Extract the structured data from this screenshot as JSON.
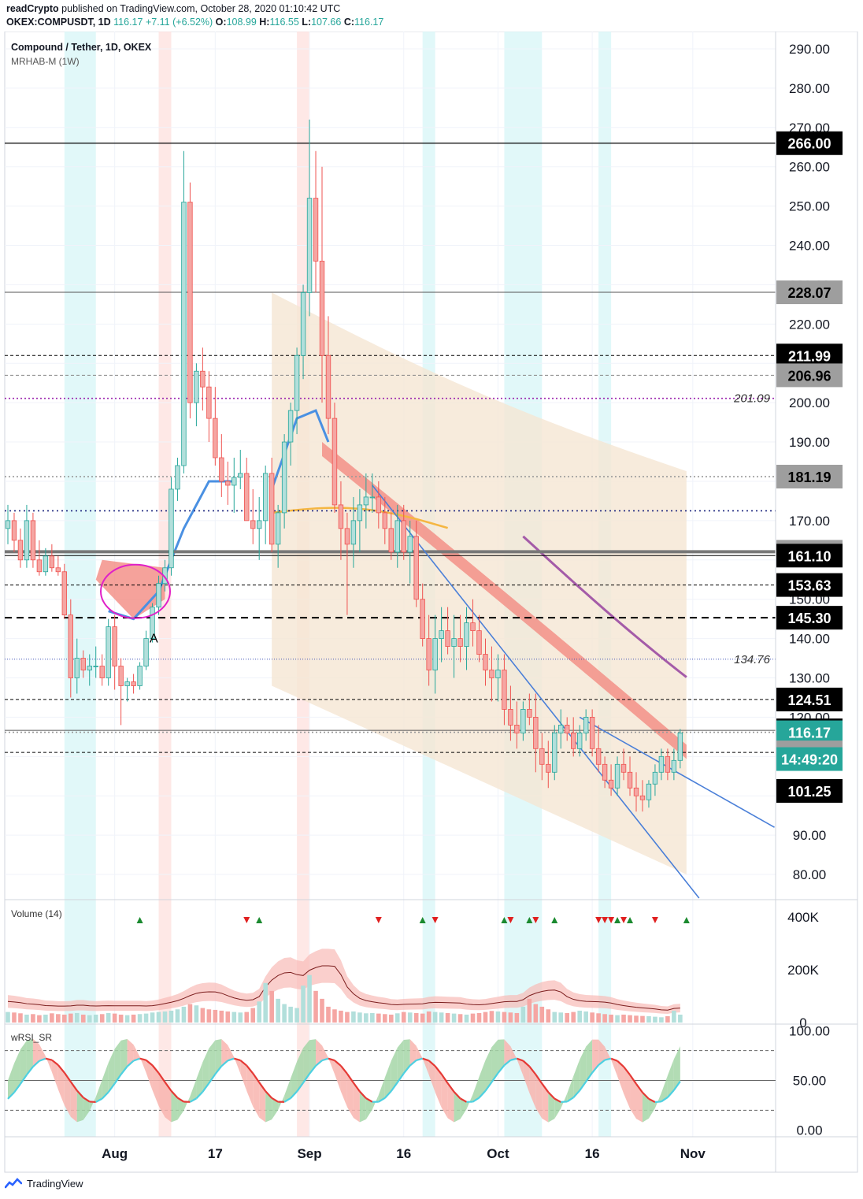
{
  "header": {
    "publisher": "readCrypto",
    "published_text": "published on TradingView.com, October 28, 2020 01:10:42 UTC",
    "symbol_line": "OKEX:COMPUSDT, 1D",
    "last": "116.17",
    "change": "+7.11 (+6.52%)",
    "o_label": "O:",
    "o": "108.99",
    "h_label": "H:",
    "h": "116.55",
    "l_label": "L:",
    "l": "107.66",
    "c_label": "C:",
    "c": "116.17"
  },
  "legend": {
    "title": "Compound / Tether, 1D, OKEX",
    "indicator": "MRHAB-M (1W)"
  },
  "footer": {
    "brand": "TradingView"
  },
  "colors": {
    "up": "#26a69a",
    "down": "#ef5350",
    "up_fill": "#b2dfdb",
    "down_fill": "#f5a6a3",
    "cloud": "#f5e6d3",
    "red_band": "#f28b82",
    "purple": "#a45ba8",
    "orange": "#f5b642",
    "blue_line": "#2962ff",
    "trend": "#4a7fd8",
    "cyan": "#4dd0e1",
    "green_fill": "#a5d6a7",
    "pink_circle": "#e020c8",
    "highlight_cyan": "#d7f5f7",
    "highlight_red": "#fde0dd"
  },
  "chart_data": {
    "type": "candlestick",
    "ylim": [
      74,
      294
    ],
    "y_ticks": [
      80,
      90,
      100,
      110,
      120,
      130,
      140,
      150,
      160,
      170,
      180,
      190,
      200,
      210,
      220,
      230,
      240,
      250,
      260,
      270,
      280,
      290
    ],
    "y_tick_labels": [
      "80.00",
      "90.00",
      "100.00",
      "110.00",
      "120.00",
      "130.00",
      "140.00",
      "150.00",
      "160.00",
      "170.00",
      "180.00",
      "190.00",
      "200.00",
      "210.00",
      "220.00",
      "230.00",
      "240.00",
      "250.00",
      "260.00",
      "270.00",
      "280.00",
      "290.00"
    ],
    "x_labels": [
      {
        "label": "Aug",
        "index": 17
      },
      {
        "label": "17",
        "index": 33
      },
      {
        "label": "Sep",
        "index": 48
      },
      {
        "label": "16",
        "index": 63
      },
      {
        "label": "Oct",
        "index": 78
      },
      {
        "label": "16",
        "index": 93
      },
      {
        "label": "Nov",
        "index": 109
      }
    ],
    "candles": [
      [
        168,
        174,
        164,
        170
      ],
      [
        170,
        172,
        162,
        165
      ],
      [
        165,
        168,
        158,
        160
      ],
      [
        160,
        174,
        158,
        170
      ],
      [
        170,
        172,
        158,
        160
      ],
      [
        160,
        165,
        156,
        157
      ],
      [
        157,
        163,
        156,
        161
      ],
      [
        161,
        164,
        157,
        158
      ],
      [
        158,
        161,
        156,
        157
      ],
      [
        157,
        159,
        145,
        146
      ],
      [
        146,
        150,
        125,
        130
      ],
      [
        130,
        140,
        126,
        135
      ],
      [
        135,
        137,
        130,
        132
      ],
      [
        132,
        136,
        128,
        133
      ],
      [
        133,
        138,
        130,
        133
      ],
      [
        133,
        136,
        128,
        130
      ],
      [
        130,
        145,
        128,
        143
      ],
      [
        143,
        146,
        127,
        133
      ],
      [
        133,
        135,
        118,
        128
      ],
      [
        128,
        130,
        124,
        129
      ],
      [
        129,
        131,
        126,
        128
      ],
      [
        128,
        134,
        127,
        133
      ],
      [
        133,
        142,
        132,
        140
      ],
      [
        140,
        149,
        139,
        148
      ],
      [
        148,
        156,
        146,
        154
      ],
      [
        154,
        160,
        152,
        158
      ],
      [
        158,
        181,
        156,
        178
      ],
      [
        178,
        186,
        175,
        184
      ],
      [
        184,
        264,
        182,
        251
      ],
      [
        251,
        256,
        196,
        200
      ],
      [
        200,
        210,
        194,
        208
      ],
      [
        208,
        214,
        198,
        204
      ],
      [
        204,
        208,
        190,
        196
      ],
      [
        196,
        204,
        184,
        186
      ],
      [
        186,
        192,
        176,
        180
      ],
      [
        180,
        185,
        174,
        179
      ],
      [
        179,
        186,
        172,
        181
      ],
      [
        181,
        188,
        178,
        182
      ],
      [
        182,
        186,
        172,
        170
      ],
      [
        170,
        178,
        164,
        168
      ],
      [
        168,
        176,
        160,
        170
      ],
      [
        170,
        184,
        164,
        182
      ],
      [
        182,
        186,
        162,
        164
      ],
      [
        164,
        174,
        158,
        172
      ],
      [
        172,
        192,
        168,
        190
      ],
      [
        190,
        200,
        184,
        198
      ],
      [
        198,
        214,
        192,
        212
      ],
      [
        212,
        230,
        206,
        228
      ],
      [
        228,
        272,
        222,
        252
      ],
      [
        252,
        264,
        228,
        236
      ],
      [
        236,
        260,
        200,
        212
      ],
      [
        212,
        222,
        192,
        196
      ],
      [
        196,
        200,
        172,
        174
      ],
      [
        174,
        180,
        160,
        168
      ],
      [
        168,
        172,
        146,
        164
      ],
      [
        164,
        176,
        158,
        170
      ],
      [
        170,
        178,
        162,
        174
      ],
      [
        174,
        182,
        168,
        176
      ],
      [
        176,
        182,
        172,
        176
      ],
      [
        176,
        180,
        168,
        172
      ],
      [
        172,
        176,
        164,
        168
      ],
      [
        168,
        172,
        160,
        162
      ],
      [
        162,
        174,
        158,
        170
      ],
      [
        170,
        174,
        160,
        162
      ],
      [
        162,
        170,
        154,
        166
      ],
      [
        166,
        170,
        148,
        150
      ],
      [
        150,
        154,
        138,
        140
      ],
      [
        140,
        146,
        128,
        132
      ],
      [
        132,
        146,
        126,
        140
      ],
      [
        140,
        148,
        134,
        142
      ],
      [
        142,
        148,
        136,
        138
      ],
      [
        138,
        146,
        130,
        140
      ],
      [
        140,
        146,
        134,
        138
      ],
      [
        138,
        148,
        132,
        144
      ],
      [
        144,
        150,
        138,
        142
      ],
      [
        142,
        146,
        134,
        136
      ],
      [
        136,
        140,
        128,
        132
      ],
      [
        132,
        138,
        124,
        130
      ],
      [
        130,
        136,
        124,
        132
      ],
      [
        132,
        136,
        118,
        122
      ],
      [
        122,
        128,
        114,
        118
      ],
      [
        118,
        124,
        112,
        116
      ],
      [
        116,
        124,
        114,
        122
      ],
      [
        122,
        126,
        118,
        120
      ],
      [
        120,
        126,
        106,
        112
      ],
      [
        112,
        116,
        104,
        108
      ],
      [
        108,
        114,
        102,
        106
      ],
      [
        106,
        118,
        104,
        116
      ],
      [
        116,
        122,
        112,
        118
      ],
      [
        118,
        120,
        114,
        116
      ],
      [
        116,
        120,
        110,
        112
      ],
      [
        112,
        118,
        110,
        116
      ],
      [
        116,
        122,
        114,
        120
      ],
      [
        120,
        122,
        110,
        112
      ],
      [
        112,
        118,
        106,
        108
      ],
      [
        108,
        110,
        102,
        104
      ],
      [
        104,
        108,
        100,
        102
      ],
      [
        102,
        110,
        100,
        108
      ],
      [
        108,
        112,
        104,
        106
      ],
      [
        106,
        110,
        100,
        102
      ],
      [
        102,
        106,
        96,
        100
      ],
      [
        100,
        104,
        96,
        99
      ],
      [
        99,
        104,
        97,
        103
      ],
      [
        103,
        108,
        100,
        106
      ],
      [
        106,
        112,
        104,
        110
      ],
      [
        110,
        112,
        104,
        106
      ],
      [
        106,
        112,
        104,
        109
      ],
      [
        109,
        117,
        107,
        116
      ]
    ],
    "horizontal_levels": [
      {
        "value": 266.0,
        "label": "266.00",
        "style": "solid",
        "label_bg": "#000000",
        "label_fg": "#ffffff"
      },
      {
        "value": 228.07,
        "label": "228.07",
        "style": "solid-thin",
        "label_bg": "#9e9e9e",
        "label_fg": "#000000"
      },
      {
        "value": 211.99,
        "label": "211.99",
        "style": "dashed",
        "label_bg": "#000000",
        "label_fg": "#ffffff"
      },
      {
        "value": 206.96,
        "label": "206.96",
        "style": "dashed-gray",
        "label_bg": "#9e9e9e",
        "label_fg": "#000000"
      },
      {
        "value": 201.09,
        "label": "201.09",
        "style": "dotted-purple",
        "label_bg": "none",
        "label_fg": "#333333"
      },
      {
        "value": 181.19,
        "label": "181.19",
        "style": "dotted-gray",
        "label_bg": "#9e9e9e",
        "label_fg": "#000000"
      },
      {
        "value": 172.5,
        "label": "",
        "style": "dotted-blue",
        "label_bg": "none",
        "label_fg": "#000000"
      },
      {
        "value": 162.08,
        "label": "162.08",
        "style": "thick-gray",
        "label_bg": "#9e9e9e",
        "label_fg": "#000000"
      },
      {
        "value": 161.1,
        "label": "161.10",
        "style": "thin-black",
        "label_bg": "#000000",
        "label_fg": "#ffffff"
      },
      {
        "value": 153.63,
        "label": "153.63",
        "style": "dashed",
        "label_bg": "#000000",
        "label_fg": "#ffffff"
      },
      {
        "value": 145.3,
        "label": "145.30",
        "style": "thick-dashed",
        "label_bg": "#000000",
        "label_fg": "#ffffff"
      },
      {
        "value": 134.76,
        "label": "134.76",
        "style": "dotted-blue-thin",
        "label_bg": "none",
        "label_fg": "#333333"
      },
      {
        "value": 124.51,
        "label": "124.51",
        "style": "dashed",
        "label_bg": "#000000",
        "label_fg": "#ffffff"
      },
      {
        "value": 116.66,
        "label": "116.66",
        "style": "solid-thin",
        "label_bg": "#000000",
        "label_fg": "#ffffff"
      },
      {
        "value": 116.17,
        "label": "116.17",
        "style": "dotted-gray",
        "label_bg": "#26a69a",
        "label_fg": "#ffffff"
      },
      {
        "value": 111.05,
        "label": "111.05",
        "style": "dashed",
        "label_bg": "#9e9e9e",
        "label_fg": "#000000"
      },
      {
        "value": 101.25,
        "label": "101.25",
        "style": "none",
        "label_bg": "#000000",
        "label_fg": "#ffffff"
      }
    ],
    "countdown": "14:49:20",
    "annotation": "A",
    "volume": {
      "title": "Volume (14)",
      "ylim": [
        0,
        460000
      ],
      "ticks": [
        0,
        200000,
        400000
      ],
      "tick_labels": [
        "0",
        "200K",
        "400K"
      ],
      "bars": [
        40,
        38,
        35,
        30,
        32,
        28,
        30,
        35,
        32,
        30,
        34,
        36,
        30,
        28,
        30,
        32,
        36,
        34,
        30,
        28,
        30,
        32,
        34,
        38,
        40,
        42,
        45,
        50,
        60,
        70,
        65,
        55,
        50,
        48,
        45,
        42,
        40,
        38,
        40,
        55,
        80,
        150,
        120,
        90,
        70,
        60,
        55,
        140,
        180,
        120,
        90,
        60,
        50,
        45,
        40,
        42,
        38,
        35,
        36,
        34,
        32,
        30,
        35,
        40,
        38,
        36,
        34,
        42,
        40,
        38,
        36,
        34,
        32,
        30,
        34,
        36,
        40,
        44,
        42,
        40,
        38,
        36,
        60,
        90,
        70,
        60,
        50,
        40,
        38,
        36,
        40,
        45,
        42,
        38,
        35,
        32,
        30,
        28,
        30,
        28,
        26,
        25,
        24,
        22,
        20,
        24,
        45,
        30
      ]
    },
    "wrsi": {
      "title": "wRSI_SR",
      "ylim": [
        -5,
        105
      ],
      "ticks": [
        0,
        50,
        100
      ],
      "tick_labels": [
        "0.00",
        "50.00",
        "100.00"
      ],
      "levels": [
        20,
        50,
        80
      ]
    }
  }
}
